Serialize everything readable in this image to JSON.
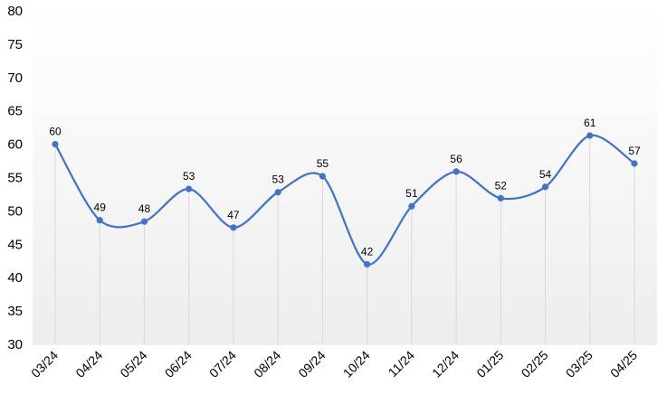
{
  "chart_data": {
    "type": "line",
    "title": "",
    "xlabel": "",
    "ylabel": "",
    "categories": [
      "03/24",
      "04/24",
      "05/24",
      "06/24",
      "07/24",
      "08/24",
      "09/24",
      "10/24",
      "11/24",
      "12/24",
      "01/25",
      "02/25",
      "03/25",
      "04/25"
    ],
    "series": [
      {
        "values": [
          60,
          48.6,
          48.4,
          53.3,
          47.5,
          52.8,
          55.2,
          42,
          50.7,
          55.9,
          51.9,
          53.6,
          61.3,
          57.1
        ],
        "labels": [
          "60",
          "49",
          "48",
          "53",
          "47",
          "53",
          "55",
          "42",
          "51",
          "56",
          "52",
          "54",
          "61",
          "57"
        ]
      }
    ],
    "ylim": [
      30,
      80
    ],
    "yticks": [
      "30",
      "35",
      "40",
      "45",
      "50",
      "55",
      "60",
      "65",
      "70",
      "75",
      "80"
    ],
    "grid": "vertical drop lines from each point",
    "legend": "none",
    "colors": {
      "line": "#4472C4",
      "marker": "#4472C4",
      "drop_line": "#D9D9D9",
      "background_top": "#FFFFFF",
      "background_bottom": "#EDEDED"
    }
  }
}
